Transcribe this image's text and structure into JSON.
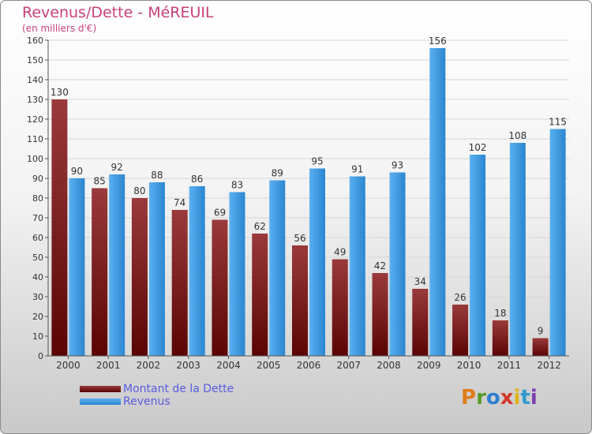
{
  "header": {
    "title": "Revenus/Dette - MéREUIL",
    "subtitle": "(en milliers d'€)"
  },
  "legend": [
    {
      "label": "Montant de la Dette",
      "color": "#7a1616"
    },
    {
      "label": "Revenus",
      "color": "#3d9ae0"
    }
  ],
  "logo": {
    "text": "Proxiti"
  },
  "colors": {
    "dette_bar_top": "#9a3a3a",
    "dette_bar_bottom": "#5a0404",
    "revenus_bar_light": "#5ab0f0",
    "revenus_bar_dark": "#2b86d0"
  },
  "chart_data": {
    "type": "bar",
    "categories": [
      "2000",
      "2001",
      "2002",
      "2003",
      "2004",
      "2005",
      "2006",
      "2007",
      "2008",
      "2009",
      "2010",
      "2011",
      "2012"
    ],
    "series": [
      {
        "name": "Montant de la Dette",
        "values": [
          130,
          85,
          80,
          74,
          69,
          62,
          56,
          49,
          42,
          34,
          26,
          18,
          9
        ]
      },
      {
        "name": "Revenus",
        "values": [
          90,
          92,
          88,
          86,
          83,
          89,
          95,
          91,
          93,
          156,
          102,
          108,
          115
        ]
      }
    ],
    "ylim": [
      0,
      160
    ],
    "yticks": [
      0,
      10,
      20,
      30,
      40,
      50,
      60,
      70,
      80,
      90,
      100,
      110,
      120,
      130,
      140,
      150,
      160
    ],
    "grid": true,
    "legend_position": "bottom-left"
  }
}
